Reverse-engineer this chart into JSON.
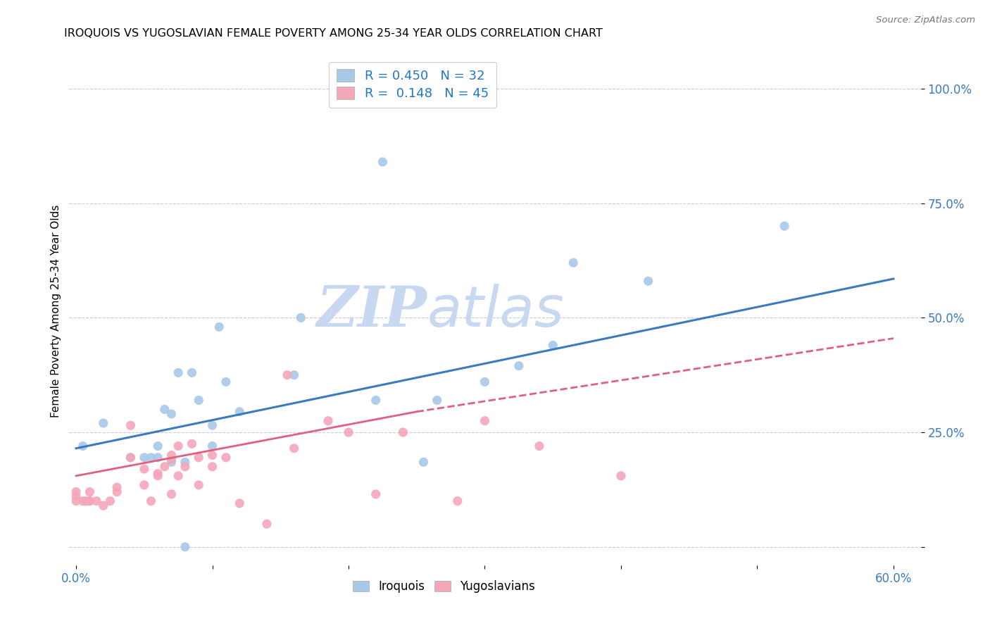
{
  "title": "IROQUOIS VS YUGOSLAVIAN FEMALE POVERTY AMONG 25-34 YEAR OLDS CORRELATION CHART",
  "source": "Source: ZipAtlas.com",
  "ylabel": "Female Poverty Among 25-34 Year Olds",
  "xlim": [
    -0.005,
    0.62
  ],
  "ylim": [
    -0.04,
    1.07
  ],
  "xticks": [
    0.0,
    0.1,
    0.2,
    0.3,
    0.4,
    0.5,
    0.6
  ],
  "xticklabels": [
    "0.0%",
    "",
    "",
    "",
    "",
    "",
    "60.0%"
  ],
  "yticks": [
    0.0,
    0.25,
    0.5,
    0.75,
    1.0
  ],
  "yticklabels": [
    "",
    "25.0%",
    "50.0%",
    "75.0%",
    "100.0%"
  ],
  "iroquois_color": "#a8c8e8",
  "yugoslavian_color": "#f4a7b9",
  "iroquois_line_color": "#3a7bbf",
  "yugoslavian_line_color": "#e06080",
  "legend_R1": "0.450",
  "legend_N1": "32",
  "legend_R2": "0.148",
  "legend_N2": "45",
  "watermark_zip": "ZIP",
  "watermark_atlas": "atlas",
  "watermark_color": "#c8d8f0",
  "background_color": "#ffffff",
  "iroquois_x": [
    0.005,
    0.02,
    0.04,
    0.05,
    0.055,
    0.06,
    0.06,
    0.065,
    0.07,
    0.07,
    0.075,
    0.08,
    0.08,
    0.085,
    0.09,
    0.1,
    0.1,
    0.105,
    0.11,
    0.12,
    0.16,
    0.165,
    0.22,
    0.225,
    0.255,
    0.265,
    0.3,
    0.325,
    0.35,
    0.365,
    0.42,
    0.52
  ],
  "iroquois_y": [
    0.22,
    0.27,
    0.195,
    0.195,
    0.195,
    0.195,
    0.22,
    0.3,
    0.185,
    0.29,
    0.38,
    0.0,
    0.185,
    0.38,
    0.32,
    0.22,
    0.265,
    0.48,
    0.36,
    0.295,
    0.375,
    0.5,
    0.32,
    0.84,
    0.185,
    0.32,
    0.36,
    0.395,
    0.44,
    0.62,
    0.58,
    0.7
  ],
  "yugoslavian_x": [
    0.0,
    0.0,
    0.0,
    0.005,
    0.007,
    0.01,
    0.01,
    0.01,
    0.015,
    0.02,
    0.025,
    0.03,
    0.03,
    0.04,
    0.04,
    0.05,
    0.05,
    0.055,
    0.06,
    0.06,
    0.065,
    0.07,
    0.07,
    0.07,
    0.075,
    0.075,
    0.08,
    0.085,
    0.09,
    0.09,
    0.1,
    0.1,
    0.11,
    0.12,
    0.14,
    0.155,
    0.16,
    0.185,
    0.2,
    0.22,
    0.24,
    0.28,
    0.3,
    0.34,
    0.4
  ],
  "yugoslavian_y": [
    0.1,
    0.11,
    0.12,
    0.1,
    0.1,
    0.1,
    0.1,
    0.12,
    0.1,
    0.09,
    0.1,
    0.12,
    0.13,
    0.195,
    0.265,
    0.135,
    0.17,
    0.1,
    0.155,
    0.16,
    0.175,
    0.115,
    0.19,
    0.2,
    0.22,
    0.155,
    0.175,
    0.225,
    0.135,
    0.195,
    0.175,
    0.2,
    0.195,
    0.095,
    0.05,
    0.375,
    0.215,
    0.275,
    0.25,
    0.115,
    0.25,
    0.1,
    0.275,
    0.22,
    0.155
  ],
  "trend_iroquois_x0": 0.0,
  "trend_iroquois_y0": 0.215,
  "trend_iroquois_x1": 0.6,
  "trend_iroquois_y1": 0.585,
  "trend_yugo_solid_x0": 0.0,
  "trend_yugo_solid_y0": 0.155,
  "trend_yugo_solid_x1": 0.25,
  "trend_yugo_solid_y1": 0.295,
  "trend_yugo_dash_x0": 0.25,
  "trend_yugo_dash_y0": 0.295,
  "trend_yugo_dash_x1": 0.6,
  "trend_yugo_dash_y1": 0.455
}
